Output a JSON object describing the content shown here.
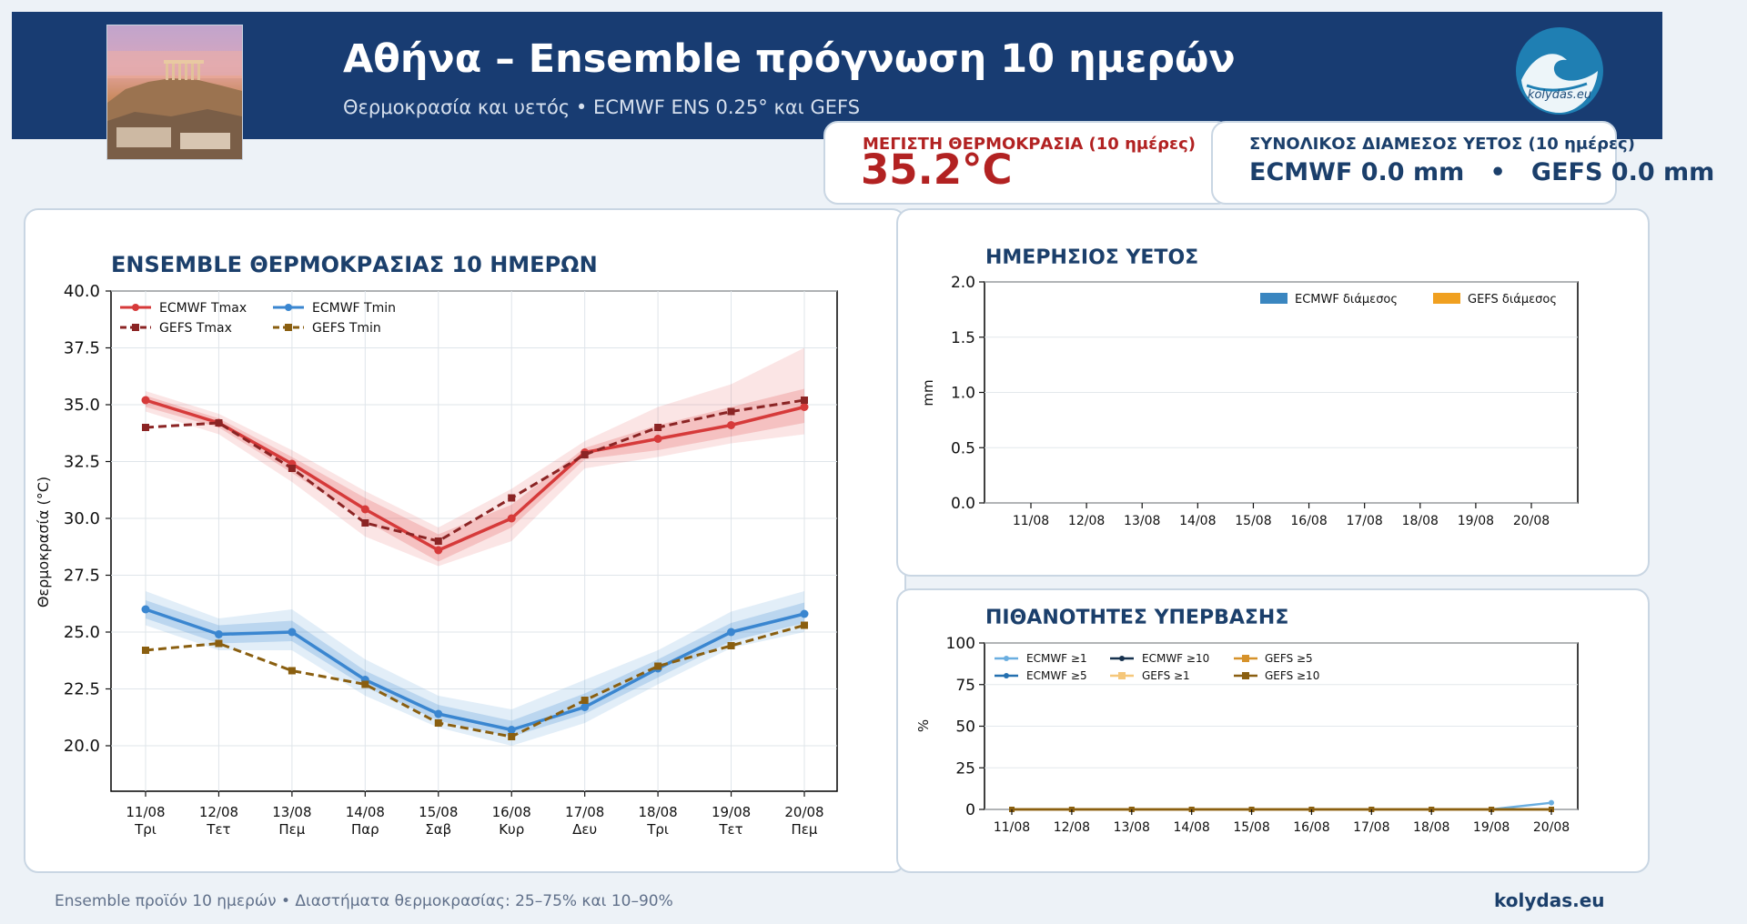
{
  "header": {
    "title": "Αθήνα – Ensemble πρόγνωση 10 ημερών",
    "subtitle": "Θερμοκρασία και υετός • ECMWF ENS 0.25° και GEFS",
    "logo_text": "kolydas.eu"
  },
  "stats": {
    "max_temp_label": "ΜΕΓΙΣΤΗ ΘΕΡΜΟΚΡΑΣΙΑ (10 ημέρες)",
    "max_temp_value": "35.2°C",
    "precip_label": "ΣΥΝΟΛΙΚΟΣ ΔΙΑΜΕΣΟΣ ΥΕΤΟΣ (10 ημέρες)",
    "precip_value": "ECMWF 0.0 mm   •   GEFS 0.0 mm"
  },
  "colors": {
    "header_bg": "#183c72",
    "ecmwf_tmax": "#d63a3a",
    "gefs_tmax": "#8b2424",
    "ecmwf_tmin": "#3a86d0",
    "gefs_tmin": "#8a5f10",
    "max_temp_text": "#b22222",
    "ecmwf_rain": "#3a86c0",
    "gefs_rain": "#f0a020"
  },
  "chart_data": [
    {
      "type": "line",
      "title": "ENSEMBLE ΘΕΡΜΟΚΡΑΣΙΑΣ 10 ΗΜΕΡΩΝ",
      "ylabel": "Θερμοκρασία (°C)",
      "xlabel": "",
      "ylim": [
        18,
        40
      ],
      "yticks": [
        "40.0",
        "37.5",
        "35.0",
        "32.5",
        "30.0",
        "27.5",
        "25.0",
        "22.5",
        "20.0"
      ],
      "categories": [
        "11/08",
        "12/08",
        "13/08",
        "14/08",
        "15/08",
        "16/08",
        "17/08",
        "18/08",
        "19/08",
        "20/08"
      ],
      "days": [
        "Τρι",
        "Τετ",
        "Πεμ",
        "Παρ",
        "Σαβ",
        "Κυρ",
        "Δευ",
        "Τρι",
        "Τετ",
        "Πεμ"
      ],
      "grid": true,
      "legend_position": "top-left",
      "series": [
        {
          "name": "ECMWF Tmax",
          "values": [
            35.2,
            34.2,
            32.4,
            30.4,
            28.6,
            30.0,
            32.9,
            33.5,
            34.1,
            34.9
          ],
          "p25": [
            34.9,
            34.0,
            32.0,
            29.9,
            28.1,
            29.6,
            32.6,
            33.0,
            33.6,
            34.2
          ],
          "p75": [
            35.4,
            34.4,
            32.7,
            30.9,
            29.3,
            30.6,
            33.1,
            34.1,
            34.9,
            35.7
          ],
          "p10": [
            34.7,
            33.7,
            31.6,
            29.2,
            27.9,
            29.0,
            32.2,
            32.7,
            33.3,
            33.7
          ],
          "p90": [
            35.6,
            34.6,
            33.0,
            31.2,
            29.6,
            31.3,
            33.4,
            34.9,
            35.9,
            37.5
          ]
        },
        {
          "name": "GEFS Tmax",
          "values": [
            34.0,
            34.2,
            32.2,
            29.8,
            29.0,
            30.9,
            32.8,
            34.0,
            34.7,
            35.2
          ]
        },
        {
          "name": "ECMWF Tmin",
          "values": [
            26.0,
            24.9,
            25.0,
            22.9,
            21.4,
            20.7,
            21.7,
            23.4,
            25.0,
            25.8
          ],
          "p25": [
            25.6,
            24.5,
            24.6,
            22.6,
            21.1,
            20.4,
            21.4,
            23.0,
            24.6,
            25.4
          ],
          "p75": [
            26.4,
            25.3,
            25.5,
            23.3,
            21.8,
            21.1,
            22.3,
            23.8,
            25.4,
            26.3
          ],
          "p10": [
            25.3,
            24.2,
            24.2,
            22.2,
            20.8,
            20.0,
            21.0,
            22.7,
            24.3,
            25.0
          ],
          "p90": [
            26.8,
            25.6,
            26.0,
            23.8,
            22.2,
            21.6,
            22.9,
            24.2,
            25.9,
            26.8
          ]
        },
        {
          "name": "GEFS Tmin",
          "values": [
            24.2,
            24.5,
            23.3,
            22.7,
            21.0,
            20.4,
            22.0,
            23.5,
            24.4,
            25.3
          ]
        }
      ]
    },
    {
      "type": "bar",
      "title": "ΗΜΕΡΗΣΙΟΣ ΥΕΤΟΣ",
      "ylabel": "mm",
      "xlabel": "",
      "ylim": [
        0,
        2
      ],
      "yticks": [
        "2.0",
        "1.5",
        "1.0",
        "0.5",
        "0.0"
      ],
      "categories": [
        "11/08",
        "12/08",
        "13/08",
        "14/08",
        "15/08",
        "16/08",
        "17/08",
        "18/08",
        "19/08",
        "20/08"
      ],
      "grid": true,
      "legend_position": "top-right",
      "series": [
        {
          "name": "ECMWF διάμεσος",
          "values": [
            0,
            0,
            0,
            0,
            0,
            0,
            0,
            0,
            0,
            0
          ]
        },
        {
          "name": "GEFS διάμεσος",
          "values": [
            0,
            0,
            0,
            0,
            0,
            0,
            0,
            0,
            0,
            0
          ]
        }
      ]
    },
    {
      "type": "line",
      "title": "ΠΙΘΑΝΟΤΗΤΕΣ ΥΠΕΡΒΑΣΗΣ",
      "ylabel": "%",
      "xlabel": "",
      "ylim": [
        0,
        100
      ],
      "yticks": [
        "100",
        "75",
        "50",
        "25",
        "0"
      ],
      "categories": [
        "11/08",
        "12/08",
        "13/08",
        "14/08",
        "15/08",
        "16/08",
        "17/08",
        "18/08",
        "19/08",
        "20/08"
      ],
      "grid": true,
      "legend_position": "top-left",
      "series": [
        {
          "name": "ECMWF ≥1",
          "values": [
            0,
            0,
            0,
            0,
            0,
            0,
            0,
            0,
            0,
            4
          ]
        },
        {
          "name": "ECMWF ≥5",
          "values": [
            0,
            0,
            0,
            0,
            0,
            0,
            0,
            0,
            0,
            0
          ]
        },
        {
          "name": "ECMWF ≥10",
          "values": [
            0,
            0,
            0,
            0,
            0,
            0,
            0,
            0,
            0,
            0
          ]
        },
        {
          "name": "GEFS ≥1",
          "values": [
            0,
            0,
            0,
            0,
            0,
            0,
            0,
            0,
            0,
            0
          ]
        },
        {
          "name": "GEFS ≥5",
          "values": [
            0,
            0,
            0,
            0,
            0,
            0,
            0,
            0,
            0,
            0
          ]
        },
        {
          "name": "GEFS ≥10",
          "values": [
            0,
            0,
            0,
            0,
            0,
            0,
            0,
            0,
            0,
            0
          ]
        }
      ]
    }
  ],
  "footer": {
    "left": "Ensemble προϊόν 10 ημερών • Διαστήματα θερμοκρασίας: 25–75% και 10–90%",
    "right": "kolydas.eu"
  }
}
